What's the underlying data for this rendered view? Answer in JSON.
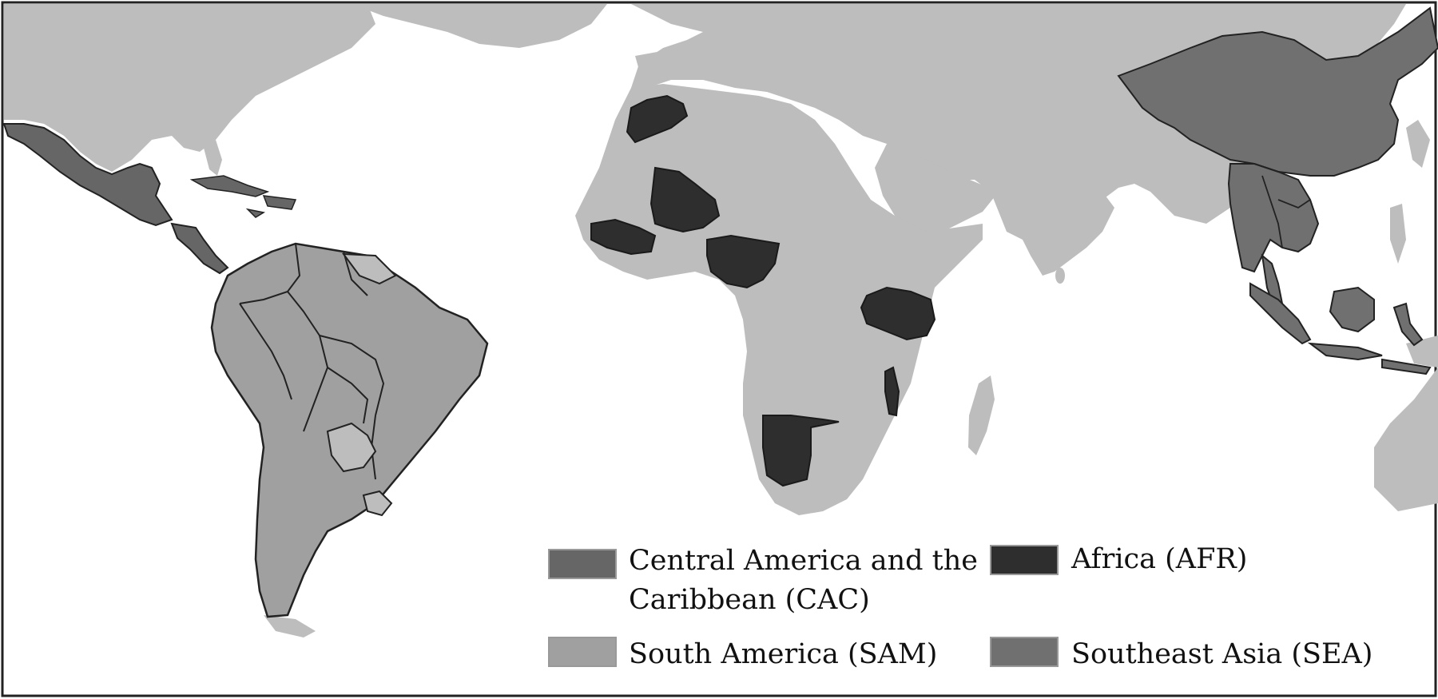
{
  "colors": {
    "background": "#ffffff",
    "land": "#bdbdbd",
    "cac": "#666666",
    "afr": "#2e2e2e",
    "sam": "#a0a0a0",
    "sea": "#707070",
    "border": "#222222"
  },
  "legend": {
    "items": [
      {
        "id": "cac",
        "label_line1": "Central America and the",
        "label_line2": "Caribbean (CAC)",
        "color": "#666666"
      },
      {
        "id": "afr",
        "label_line1": "Africa (AFR)",
        "label_line2": "",
        "color": "#2e2e2e"
      },
      {
        "id": "sam",
        "label_line1": "South America (SAM)",
        "label_line2": "",
        "color": "#a0a0a0"
      },
      {
        "id": "sea",
        "label_line1": "Southeast Asia (SEA)",
        "label_line2": "",
        "color": "#707070"
      }
    ]
  }
}
